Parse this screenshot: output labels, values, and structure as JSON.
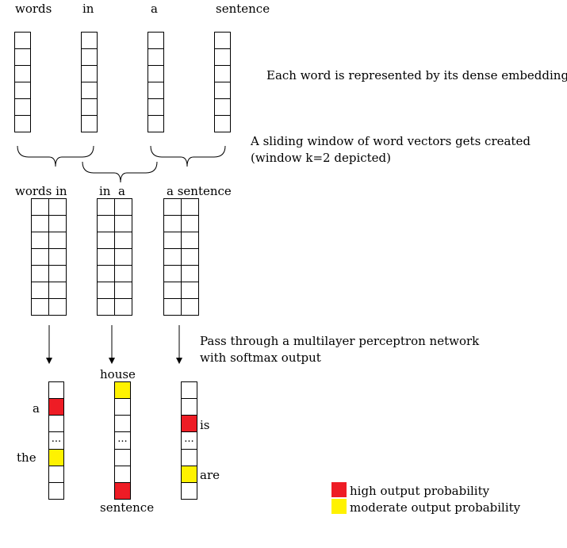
{
  "top_words": [
    "words",
    "in",
    "a",
    "sentence"
  ],
  "note_embedding": "Each word is represented by its dense embedding",
  "note_window_line1": "A sliding window of word vectors gets created",
  "note_window_line2": "(window k=2 depicted)",
  "window_labels": [
    "words in",
    "in  a",
    "a sentence"
  ],
  "note_mlp_line1": "Pass through a multilayer perceptron network",
  "note_mlp_line2": "with softmax output",
  "output_labels": {
    "a": "a",
    "the": "the",
    "house": "house",
    "sentence": "sentence",
    "is": "is",
    "are": "are"
  },
  "ellipsis": "...",
  "legend": {
    "high": "high output probability",
    "moderate": "moderate output probability"
  },
  "colors": {
    "high": "#ee1c25",
    "moderate": "#fff200"
  }
}
